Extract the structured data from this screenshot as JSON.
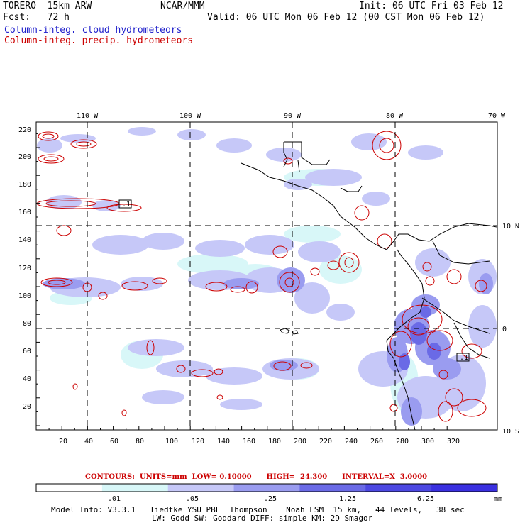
{
  "header": {
    "model": "TORERO  15km ARW",
    "org": "NCAR/MMM",
    "init": "Init: 06 UTC Fri 03 Feb 12",
    "fcst": "Fcst:   72 h",
    "valid": "Valid: 06 UTC Mon 06 Feb 12 (00 CST Mon 06 Feb 12)",
    "field1": "Column-integ. cloud hydrometeors",
    "field2": "Column-integ. precip. hydrometeors"
  },
  "map": {
    "top_lon_labels": [
      "110 W",
      "100 W",
      "90 W",
      "80 W",
      "70 W"
    ],
    "right_lat_labels": [
      "10 N",
      "0",
      "10 S"
    ],
    "y_ticks": [
      "220",
      "200",
      "180",
      "160",
      "140",
      "120",
      "100",
      "80",
      "60",
      "40",
      "20"
    ],
    "x_ticks": [
      "20",
      "40",
      "60",
      "80",
      "100",
      "120",
      "140",
      "160",
      "180",
      "200",
      "220",
      "240",
      "260",
      "280",
      "300",
      "320"
    ],
    "box_labels": [
      ".1",
      ".1"
    ]
  },
  "contours": {
    "text": "CONTOURS:  UNITS=mm  LOW= 0.10000      HIGH=  24.300      INTERVAL=X  3.0000",
    "color": "#cc0000"
  },
  "colorbar": {
    "labels": [
      ".01",
      ".05",
      ".25",
      "1.25",
      "6.25"
    ],
    "unit": "mm",
    "colors": [
      "#ffffff",
      "#d8f7f8",
      "#c6c8f8",
      "#9a9cf0",
      "#6a6ae6",
      "#4c48e2",
      "#3a30e0"
    ]
  },
  "model_info": {
    "line1": "Model Info: V3.3.1   Tiedtke YSU PBL  Thompson    Noah LSM  15 km,   44 levels,   38 sec",
    "line2": "LW: Godd SW: Goddard DIFF: simple KM: 2D Smagor"
  }
}
